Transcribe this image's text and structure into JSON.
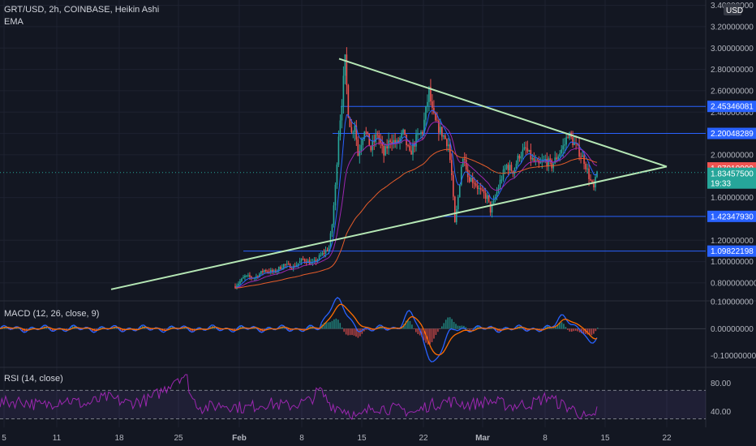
{
  "header": {
    "symbol_line": "GRT/USD, 2h, COINBASE, Heikin Ashi",
    "indicator": "EMA",
    "currency_badge": "USD"
  },
  "colors": {
    "background": "#131722",
    "grid": "#1e2230",
    "up": "#26a69a",
    "down": "#ef5350",
    "trendline": "#b5e7b5",
    "level_line": "#2962ff",
    "ema_fast": "#2962ff",
    "ema_mid": "#9c27b0",
    "ema_slow": "#e65c2a",
    "macd_line": "#2962ff",
    "signal_line": "#ff6d00",
    "rsi_line": "#9c27b0",
    "price_tag_red": "#ef5350",
    "price_tag_teal": "#26a69a"
  },
  "chart_data": [
    {
      "type": "candlestick",
      "title": "GRT/USD, 2h, COINBASE, Heikin Ashi",
      "x_axis_ticks": [
        "5",
        "11",
        "18",
        "25",
        "Feb",
        "8",
        "15",
        "22",
        "Mar",
        "8",
        "15",
        "22"
      ],
      "y_axis_ticks": [
        "0.800000000",
        "1.00000000",
        "1.20000000",
        "1.60000000",
        "2.00000000",
        "2.20000000",
        "2.40000000",
        "2.60000000",
        "2.80000000",
        "3.00000000",
        "3.20000000",
        "3.40000000"
      ],
      "ylim": [
        0.64,
        3.45
      ],
      "price_path": [
        [
          0,
          0.77
        ],
        [
          3,
          0.86
        ],
        [
          6,
          0.85
        ],
        [
          9,
          0.92
        ],
        [
          12,
          0.9
        ],
        [
          15,
          0.97
        ],
        [
          18,
          0.95
        ],
        [
          21,
          1.02
        ],
        [
          24,
          0.98
        ],
        [
          27,
          1.07
        ],
        [
          29,
          1.13
        ],
        [
          30,
          1.35
        ],
        [
          31,
          1.7
        ],
        [
          32,
          2.2
        ],
        [
          33,
          2.5
        ],
        [
          34,
          2.88
        ],
        [
          35,
          2.4
        ],
        [
          36,
          2.2
        ],
        [
          37,
          2.3
        ],
        [
          38,
          2.0
        ],
        [
          40,
          2.25
        ],
        [
          42,
          2.05
        ],
        [
          44,
          2.2
        ],
        [
          46,
          2.0
        ],
        [
          48,
          2.15
        ],
        [
          50,
          2.1
        ],
        [
          52,
          2.2
        ],
        [
          54,
          2.0
        ],
        [
          56,
          2.15
        ],
        [
          58,
          2.22
        ],
        [
          60,
          2.6
        ],
        [
          61,
          2.4
        ],
        [
          62,
          2.3
        ],
        [
          64,
          2.2
        ],
        [
          66,
          2.1
        ],
        [
          67,
          1.8
        ],
        [
          68,
          1.35
        ],
        [
          69,
          1.6
        ],
        [
          70,
          1.9
        ],
        [
          71,
          2.0
        ],
        [
          72,
          1.8
        ],
        [
          74,
          1.75
        ],
        [
          76,
          1.65
        ],
        [
          78,
          1.6
        ],
        [
          79,
          1.48
        ],
        [
          80,
          1.55
        ],
        [
          82,
          1.75
        ],
        [
          84,
          1.9
        ],
        [
          86,
          1.85
        ],
        [
          88,
          2.0
        ],
        [
          90,
          2.05
        ],
        [
          92,
          1.95
        ],
        [
          94,
          1.9
        ],
        [
          96,
          1.95
        ],
        [
          98,
          1.9
        ],
        [
          100,
          2.0
        ],
        [
          102,
          2.1
        ],
        [
          103,
          2.2
        ],
        [
          104,
          2.15
        ],
        [
          106,
          2.05
        ],
        [
          108,
          1.95
        ],
        [
          110,
          1.75
        ],
        [
          111,
          1.68
        ],
        [
          112,
          1.83
        ]
      ],
      "last_price": 1.8345,
      "ema_periods_note": "three EMAs drawn (blue, purple, orange)",
      "horizontal_levels": [
        2.45346081,
        2.20048289,
        1.4234793,
        1.09822198
      ],
      "level_tags": [
        "2.45346081",
        "2.20048289",
        "1.42347930",
        "1.09822198"
      ],
      "price_tags": [
        {
          "text": "1.87010000",
          "color": "#ef5350"
        },
        {
          "text": "1.83457500",
          "color": "#26a69a"
        },
        {
          "text": "19:33",
          "color": "#26a69a"
        }
      ],
      "trendlines": [
        {
          "from": [
            0,
            0.74
          ],
          "to": [
            132,
            1.89
          ]
        },
        {
          "from": [
            35,
            2.9
          ],
          "to": [
            132,
            1.89
          ]
        }
      ]
    },
    {
      "type": "line",
      "title": "MACD (12, 26, close, 9)",
      "y_axis_ticks": [
        "0.10000000",
        "0.00000000",
        "-0.10000000"
      ],
      "ylim": [
        -0.14,
        0.1
      ],
      "series": [
        {
          "name": "MACD",
          "values_note": "oscillates near zero; large spike ~0.11 near Feb 11, trough ~-0.12 near Feb 24"
        },
        {
          "name": "Signal"
        }
      ]
    },
    {
      "type": "line",
      "title": "RSI (14, close)",
      "y_axis_ticks": [
        "80.00",
        "40.00"
      ],
      "ylim": [
        18,
        100
      ],
      "band": [
        30,
        70
      ],
      "rsi_path": [
        [
          0,
          52
        ],
        [
          4,
          55
        ],
        [
          8,
          48
        ],
        [
          12,
          58
        ],
        [
          16,
          50
        ],
        [
          20,
          60
        ],
        [
          24,
          52
        ],
        [
          28,
          57
        ],
        [
          31,
          72
        ],
        [
          33,
          88
        ],
        [
          35,
          90
        ],
        [
          36,
          58
        ],
        [
          38,
          45
        ],
        [
          42,
          50
        ],
        [
          46,
          45
        ],
        [
          50,
          52
        ],
        [
          54,
          48
        ],
        [
          58,
          55
        ],
        [
          60,
          70
        ],
        [
          62,
          50
        ],
        [
          64,
          45
        ],
        [
          66,
          38
        ],
        [
          67,
          30
        ],
        [
          68,
          35
        ],
        [
          70,
          48
        ],
        [
          72,
          45
        ],
        [
          76,
          42
        ],
        [
          78,
          38
        ],
        [
          80,
          48
        ],
        [
          84,
          55
        ],
        [
          88,
          50
        ],
        [
          92,
          55
        ],
        [
          96,
          48
        ],
        [
          100,
          52
        ],
        [
          103,
          62
        ],
        [
          104,
          55
        ],
        [
          106,
          48
        ],
        [
          108,
          42
        ],
        [
          110,
          30
        ],
        [
          111,
          28
        ],
        [
          112,
          44
        ]
      ]
    }
  ]
}
